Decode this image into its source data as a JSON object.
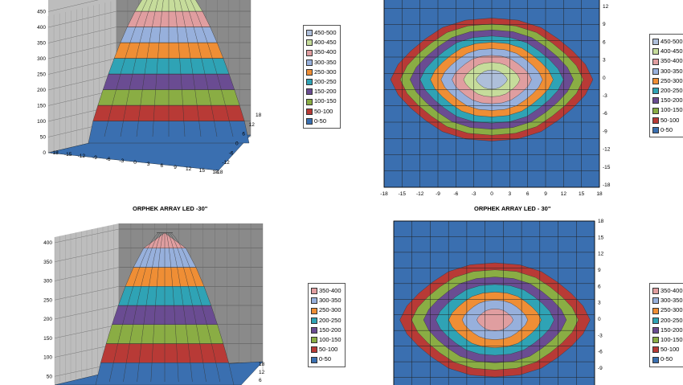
{
  "colors": {
    "0-50": "#3a6fb0",
    "50-100": "#b83a36",
    "100-150": "#8aad44",
    "150-200": "#6a4c92",
    "200-250": "#2fa3b5",
    "250-300": "#ef8e35",
    "300-350": "#97b0dc",
    "350-400": "#e09ea0",
    "400-450": "#c6dc9b",
    "450-500": "#aebfda",
    "wall": "#8a8a8a",
    "wall_light": "#bdbdbd"
  },
  "chart_data": [
    {
      "type": "surface",
      "title": "",
      "x_ticks": [
        "-18",
        "-15",
        "-12",
        "-9",
        "-6",
        "-3",
        "0",
        "3",
        "6",
        "9",
        "12",
        "15",
        "18"
      ],
      "y_ticks": [
        "-18",
        "-12",
        "-6",
        "0",
        "6",
        "12",
        "18"
      ],
      "z_ticks": [
        "0",
        "50",
        "100",
        "150",
        "200",
        "250",
        "300",
        "350",
        "400",
        "450"
      ],
      "zlim": [
        0,
        500
      ],
      "peak": 500,
      "legend": [
        "450-500",
        "400-450",
        "350-400",
        "300-350",
        "250-300",
        "200-250",
        "150-200",
        "100-150",
        "50-100",
        "0-50"
      ],
      "legend_position": "right"
    },
    {
      "type": "contour",
      "title": "",
      "x_ticks": [
        "-18",
        "-15",
        "-12",
        "-9",
        "-6",
        "-3",
        "0",
        "3",
        "6",
        "9",
        "12",
        "15",
        "18"
      ],
      "y_ticks": [
        "12",
        "9",
        "6",
        "3",
        "0",
        "-3",
        "-6",
        "-9",
        "-12",
        "-15",
        "-18"
      ],
      "levels": [
        "0-50",
        "50-100",
        "100-150",
        "150-200",
        "200-250",
        "250-300",
        "300-350",
        "350-400",
        "400-450",
        "450-500"
      ],
      "peak": 480,
      "legend": [
        "450-500",
        "400-450",
        "350-400",
        "300-350",
        "250-300",
        "200-250",
        "150-200",
        "100-150",
        "50-100",
        "0-50"
      ],
      "legend_position": "right"
    },
    {
      "type": "surface",
      "title": "ORPHEK ARRAY LED -30\"",
      "y_ticks": [
        "18",
        "12",
        "6"
      ],
      "z_ticks": [
        "50",
        "100",
        "150",
        "200",
        "250",
        "300",
        "350",
        "400"
      ],
      "zlim": [
        0,
        400
      ],
      "peak": 390,
      "legend": [
        "350-400",
        "300-350",
        "250-300",
        "200-250",
        "150-200",
        "100-150",
        "50-100",
        "0-50"
      ],
      "legend_position": "right"
    },
    {
      "type": "contour",
      "title": "ORPHEK ARRAY LED - 30\"",
      "y_ticks": [
        "18",
        "15",
        "12",
        "9",
        "6",
        "3",
        "0",
        "-3",
        "-6",
        "-9"
      ],
      "levels": [
        "0-50",
        "50-100",
        "100-150",
        "150-200",
        "200-250",
        "250-300",
        "300-350",
        "350-400"
      ],
      "peak": 380,
      "legend": [
        "350-400",
        "300-350",
        "250-300",
        "200-250",
        "150-200",
        "100-150",
        "50-100",
        "0-50"
      ],
      "legend_position": "right"
    }
  ]
}
